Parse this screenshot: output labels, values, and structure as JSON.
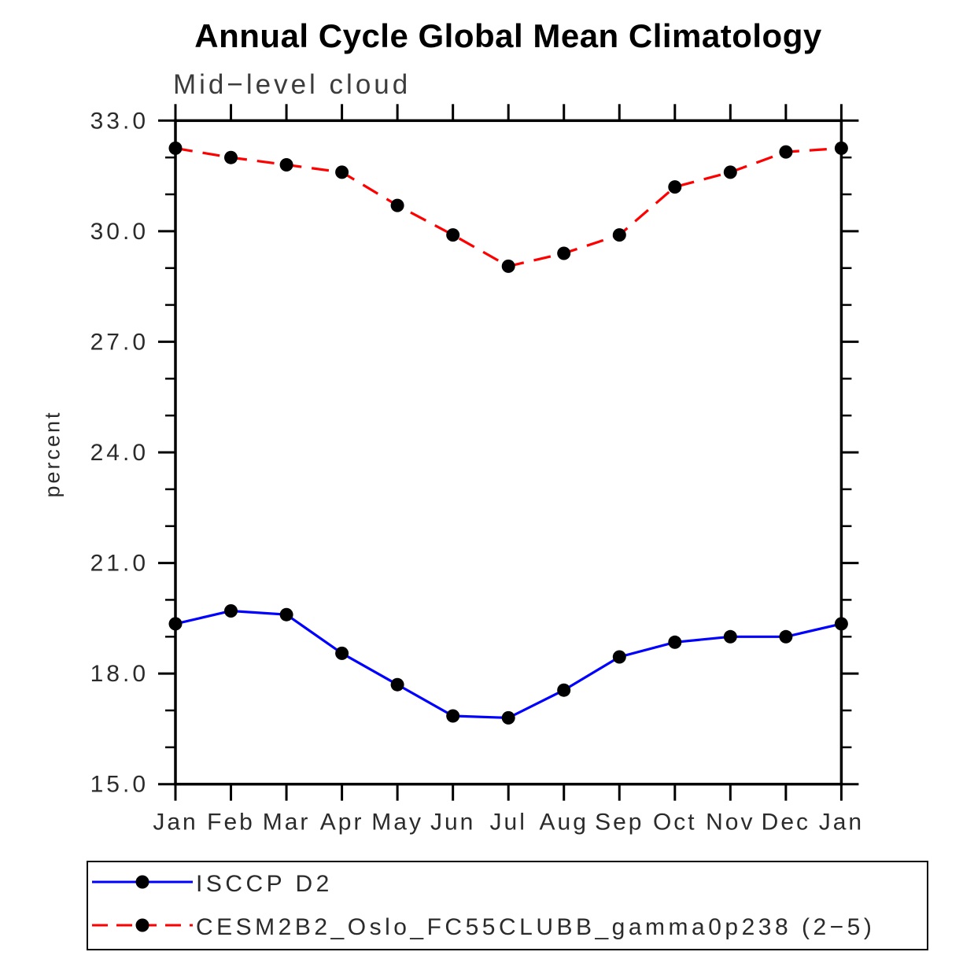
{
  "chart_data": {
    "type": "line",
    "title": "Annual Cycle Global Mean Climatology",
    "subtitle": "Mid−level cloud",
    "ylabel": "percent",
    "xlabel": "",
    "categories": [
      "Jan",
      "Feb",
      "Mar",
      "Apr",
      "May",
      "Jun",
      "Jul",
      "Aug",
      "Sep",
      "Oct",
      "Nov",
      "Dec",
      "Jan"
    ],
    "ylim": [
      15.0,
      33.0
    ],
    "ytick_values": [
      33,
      30,
      27,
      24,
      21,
      18,
      15
    ],
    "ytick_labels": [
      "33.0",
      "30.0",
      "27.0",
      "24.0",
      "21.0",
      "18.0",
      "15.0"
    ],
    "y_minor_ticks": [
      32,
      31,
      29,
      28,
      26,
      25,
      23,
      22,
      20,
      19,
      17,
      16
    ],
    "grid": false,
    "frame_color": "#000000",
    "marker_color": "#000000",
    "legend_position": "bottom-left",
    "series": [
      {
        "name": "ISCCP D2",
        "color": "#0000ff",
        "style": "solid",
        "marker": "circle",
        "values": [
          19.35,
          19.7,
          19.6,
          18.55,
          17.7,
          16.85,
          16.8,
          17.55,
          18.45,
          18.85,
          19.0,
          19.0,
          19.35
        ]
      },
      {
        "name": "CESM2B2_Oslo_FC55CLUBB_gamma0p238 (2−5)",
        "color": "#ff0000",
        "style": "dashed",
        "marker": "circle",
        "values": [
          32.25,
          32.0,
          31.8,
          31.6,
          30.7,
          29.9,
          29.05,
          29.4,
          29.9,
          31.2,
          31.6,
          32.15,
          32.25
        ]
      }
    ]
  }
}
